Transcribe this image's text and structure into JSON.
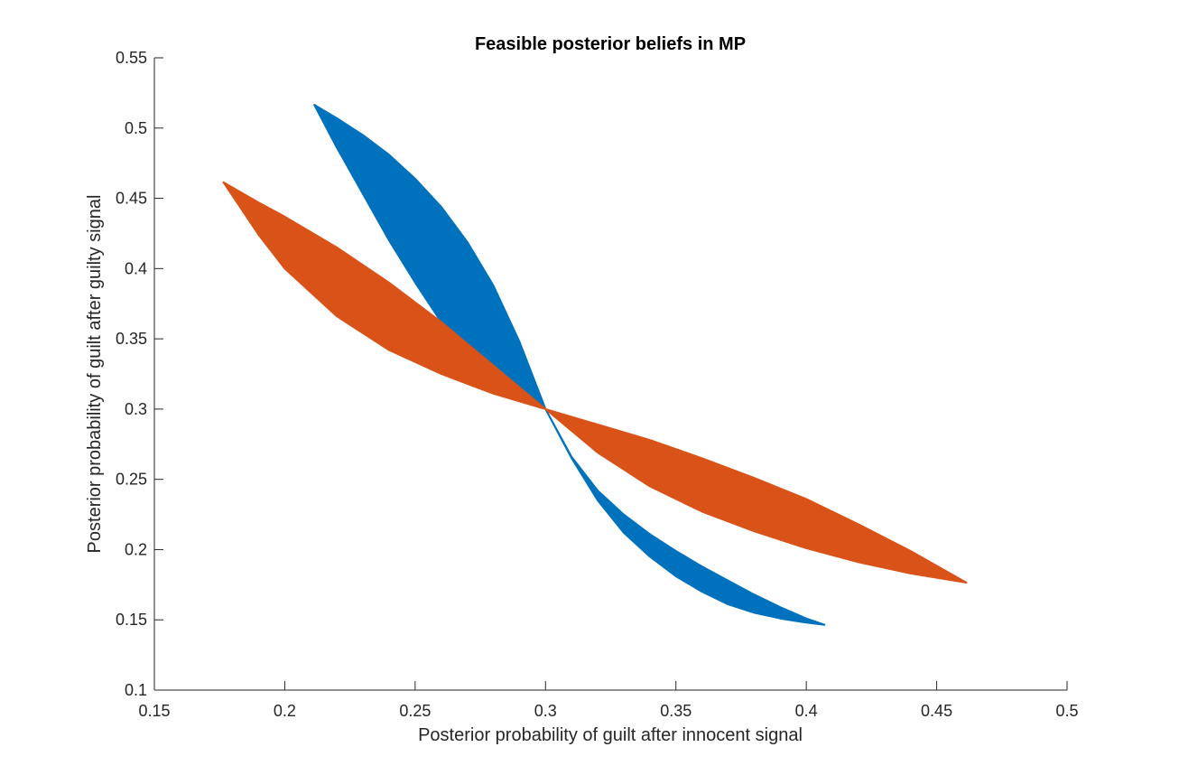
{
  "chart_data": {
    "type": "area",
    "title": "Feasible posterior beliefs in MP",
    "xlabel": "Posterior probability of guilt after innocent signal",
    "ylabel": "Posterior probability of guilt after guilty signal",
    "xlim": [
      0.15,
      0.5
    ],
    "ylim": [
      0.1,
      0.55
    ],
    "x_ticks": [
      0.15,
      0.2,
      0.25,
      0.3,
      0.35,
      0.4,
      0.45,
      0.5
    ],
    "y_ticks": [
      0.1,
      0.15,
      0.2,
      0.25,
      0.3,
      0.35,
      0.4,
      0.45,
      0.5,
      0.55
    ],
    "x_tick_labels": [
      "0.15",
      "0.2",
      "0.25",
      "0.3",
      "0.35",
      "0.4",
      "0.45",
      "0.5"
    ],
    "y_tick_labels": [
      "0.1",
      "0.15",
      "0.2",
      "0.25",
      "0.3",
      "0.35",
      "0.4",
      "0.45",
      "0.5",
      "0.55"
    ],
    "grid": false,
    "legend": "none",
    "series": [
      {
        "color": "#0072BD",
        "upper_boundary": [
          [
            0.2113,
            0.5166
          ],
          [
            0.22,
            0.507
          ],
          [
            0.23,
            0.495
          ],
          [
            0.24,
            0.481
          ],
          [
            0.25,
            0.464
          ],
          [
            0.26,
            0.444
          ],
          [
            0.27,
            0.419
          ],
          [
            0.28,
            0.388
          ],
          [
            0.29,
            0.348
          ],
          [
            0.3,
            0.3
          ],
          [
            0.31,
            0.266
          ],
          [
            0.32,
            0.242
          ],
          [
            0.33,
            0.225
          ],
          [
            0.34,
            0.211
          ],
          [
            0.35,
            0.199
          ],
          [
            0.36,
            0.188
          ],
          [
            0.37,
            0.178
          ],
          [
            0.38,
            0.168
          ],
          [
            0.39,
            0.159
          ],
          [
            0.4,
            0.151
          ],
          [
            0.407,
            0.1465
          ]
        ],
        "lower_boundary": [
          [
            0.2113,
            0.5166
          ],
          [
            0.22,
            0.486
          ],
          [
            0.23,
            0.453
          ],
          [
            0.24,
            0.42
          ],
          [
            0.25,
            0.39
          ],
          [
            0.26,
            0.362
          ],
          [
            0.27,
            0.337
          ],
          [
            0.28,
            0.318
          ],
          [
            0.29,
            0.308
          ],
          [
            0.3,
            0.3
          ],
          [
            0.31,
            0.265
          ],
          [
            0.32,
            0.235
          ],
          [
            0.33,
            0.212
          ],
          [
            0.34,
            0.195
          ],
          [
            0.35,
            0.181
          ],
          [
            0.36,
            0.17
          ],
          [
            0.37,
            0.161
          ],
          [
            0.38,
            0.155
          ],
          [
            0.39,
            0.151
          ],
          [
            0.4,
            0.148
          ],
          [
            0.407,
            0.1465
          ]
        ]
      },
      {
        "color": "#D95319",
        "upper_boundary": [
          [
            0.1765,
            0.4614
          ],
          [
            0.19,
            0.447
          ],
          [
            0.2,
            0.437
          ],
          [
            0.22,
            0.415
          ],
          [
            0.24,
            0.39
          ],
          [
            0.26,
            0.362
          ],
          [
            0.28,
            0.331
          ],
          [
            0.3,
            0.3
          ],
          [
            0.32,
            0.289
          ],
          [
            0.34,
            0.278
          ],
          [
            0.36,
            0.265
          ],
          [
            0.38,
            0.251
          ],
          [
            0.4,
            0.236
          ],
          [
            0.42,
            0.218
          ],
          [
            0.44,
            0.199
          ],
          [
            0.4614,
            0.1765
          ]
        ],
        "lower_boundary": [
          [
            0.1765,
            0.4614
          ],
          [
            0.19,
            0.424
          ],
          [
            0.2,
            0.4
          ],
          [
            0.22,
            0.366
          ],
          [
            0.24,
            0.342
          ],
          [
            0.26,
            0.325
          ],
          [
            0.28,
            0.311
          ],
          [
            0.3,
            0.3
          ],
          [
            0.32,
            0.269
          ],
          [
            0.34,
            0.245
          ],
          [
            0.36,
            0.227
          ],
          [
            0.38,
            0.213
          ],
          [
            0.4,
            0.201
          ],
          [
            0.42,
            0.191
          ],
          [
            0.44,
            0.183
          ],
          [
            0.4614,
            0.1765
          ]
        ]
      }
    ]
  }
}
